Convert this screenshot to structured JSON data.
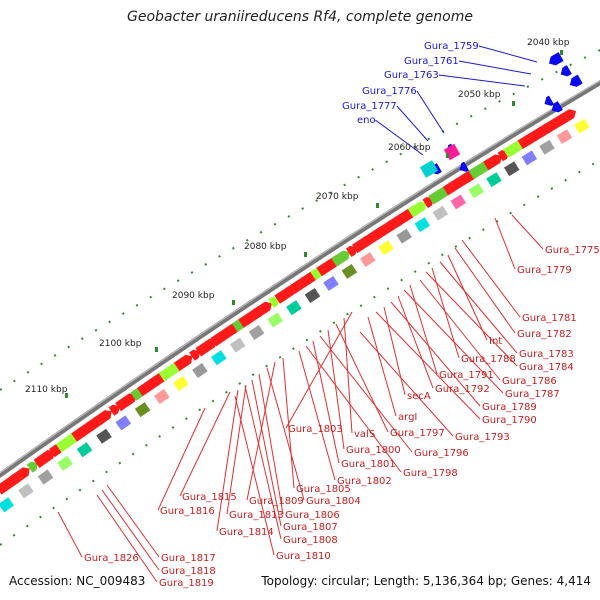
{
  "title": "Geobacter uraniireducens Rf4, complete genome",
  "footer": {
    "accession": "Accession: NC_009483",
    "summary": "Topology: circular; Length: 5,136,364 bp; Genes: 4,414"
  },
  "ticks": [
    {
      "label": "2040 kbp"
    },
    {
      "label": "2050 kbp"
    },
    {
      "label": "2060 kbp"
    },
    {
      "label": "2070 kbp"
    },
    {
      "label": "2080 kbp"
    },
    {
      "label": "2090 kbp"
    },
    {
      "label": "2100 kbp"
    },
    {
      "label": "2110 kbp"
    }
  ],
  "genes_outer": [
    {
      "label": "Gura_1759"
    },
    {
      "label": "Gura_1761"
    },
    {
      "label": "Gura_1763"
    },
    {
      "label": "Gura_1776"
    },
    {
      "label": "Gura_1777"
    },
    {
      "label": "eno"
    }
  ],
  "genes_inner": [
    {
      "label": "Gura_1775"
    },
    {
      "label": "Gura_1779"
    },
    {
      "label": "Gura_1781"
    },
    {
      "label": "Gura_1782"
    },
    {
      "label": "Int"
    },
    {
      "label": "Gura_1783"
    },
    {
      "label": "Gura_1788"
    },
    {
      "label": "Gura_1784"
    },
    {
      "label": "Gura_1786"
    },
    {
      "label": "Gura_1791"
    },
    {
      "label": "Gura_1787"
    },
    {
      "label": "Gura_1792"
    },
    {
      "label": "Gura_1789"
    },
    {
      "label": "secA"
    },
    {
      "label": "Gura_1790"
    },
    {
      "label": "argI"
    },
    {
      "label": "Gura_1803"
    },
    {
      "label": "valS"
    },
    {
      "label": "Gura_1797"
    },
    {
      "label": "Gura_1793"
    },
    {
      "label": "Gura_1800"
    },
    {
      "label": "Gura_1796"
    },
    {
      "label": "Gura_1801"
    },
    {
      "label": "Gura_1798"
    },
    {
      "label": "Gura_1802"
    },
    {
      "label": "Gura_1805"
    },
    {
      "label": "Gura_1815"
    },
    {
      "label": "Gura_1809"
    },
    {
      "label": "Gura_1804"
    },
    {
      "label": "Gura_1816"
    },
    {
      "label": "Gura_1813"
    },
    {
      "label": "Gura_1806"
    },
    {
      "label": "Gura_1814"
    },
    {
      "label": "Gura_1807"
    },
    {
      "label": "Gura_1808"
    },
    {
      "label": "Gura_1810"
    },
    {
      "label": "Gura_1826"
    },
    {
      "label": "Gura_1817"
    },
    {
      "label": "Gura_1818"
    },
    {
      "label": "Gura_1819"
    }
  ]
}
